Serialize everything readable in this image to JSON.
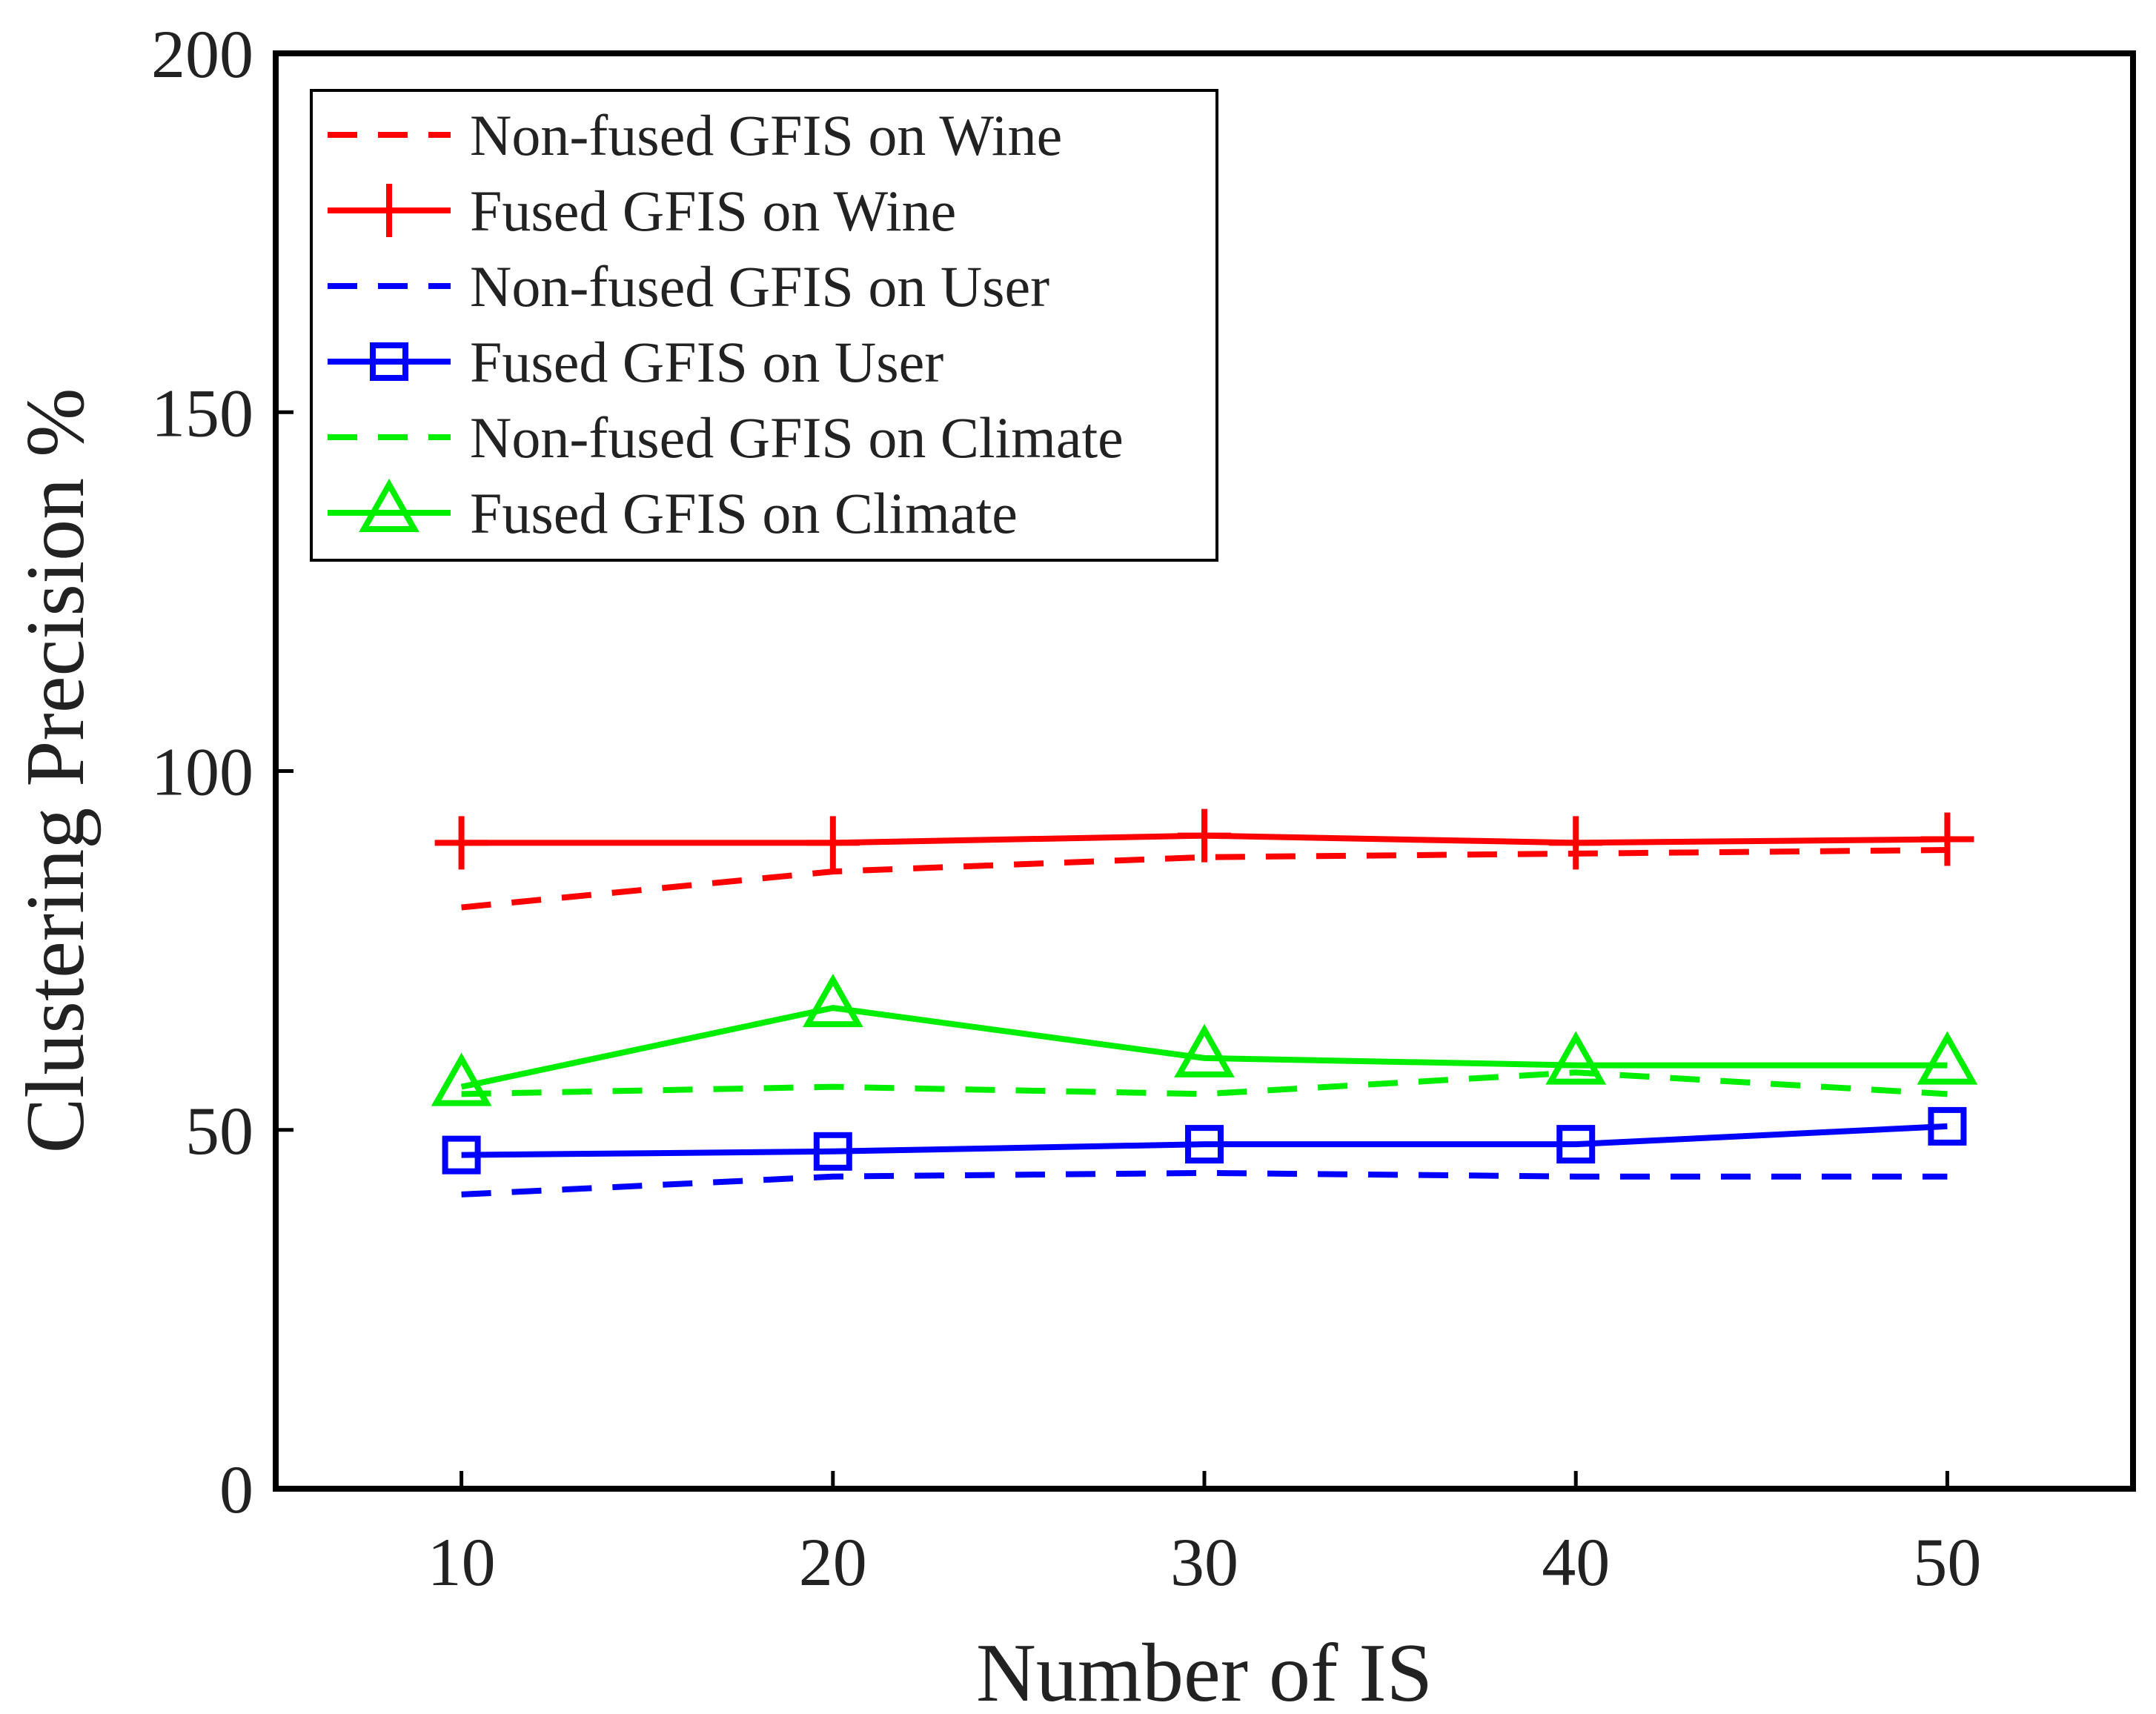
{
  "chart_data": {
    "type": "line",
    "title": "",
    "xlabel": "Number of IS",
    "ylabel": "Clustering Precision %",
    "xlim": [
      5,
      55
    ],
    "ylim": [
      0,
      200
    ],
    "xticks": [
      10,
      20,
      30,
      40,
      50
    ],
    "yticks": [
      0,
      50,
      100,
      150,
      200
    ],
    "grid": false,
    "legend_position": "top-left",
    "x": [
      10,
      20,
      30,
      40,
      50
    ],
    "series": [
      {
        "name": "Non-fused GFIS on Wine",
        "color": "#ff0000",
        "style": "dashed",
        "marker": "none",
        "values": [
          81,
          86,
          88,
          88.5,
          89
        ]
      },
      {
        "name": "Fused GFIS on Wine",
        "color": "#ff0000",
        "style": "solid",
        "marker": "plus",
        "values": [
          90,
          90,
          91,
          90,
          90.5
        ]
      },
      {
        "name": "Non-fused GFIS on User",
        "color": "#0000ff",
        "style": "dashed",
        "marker": "none",
        "values": [
          41,
          43.5,
          44,
          43.5,
          43.5
        ]
      },
      {
        "name": "Fused GFIS on User",
        "color": "#0000ff",
        "style": "solid",
        "marker": "square",
        "values": [
          46.5,
          47,
          48,
          48,
          50.5
        ]
      },
      {
        "name": "Non-fused GFIS on Climate",
        "color": "#00ee00",
        "style": "dashed",
        "marker": "none",
        "values": [
          55,
          56,
          55,
          58,
          55
        ]
      },
      {
        "name": "Fused GFIS on Climate",
        "color": "#00ee00",
        "style": "solid",
        "marker": "triangle",
        "values": [
          56,
          67,
          60,
          59,
          59
        ]
      }
    ]
  }
}
